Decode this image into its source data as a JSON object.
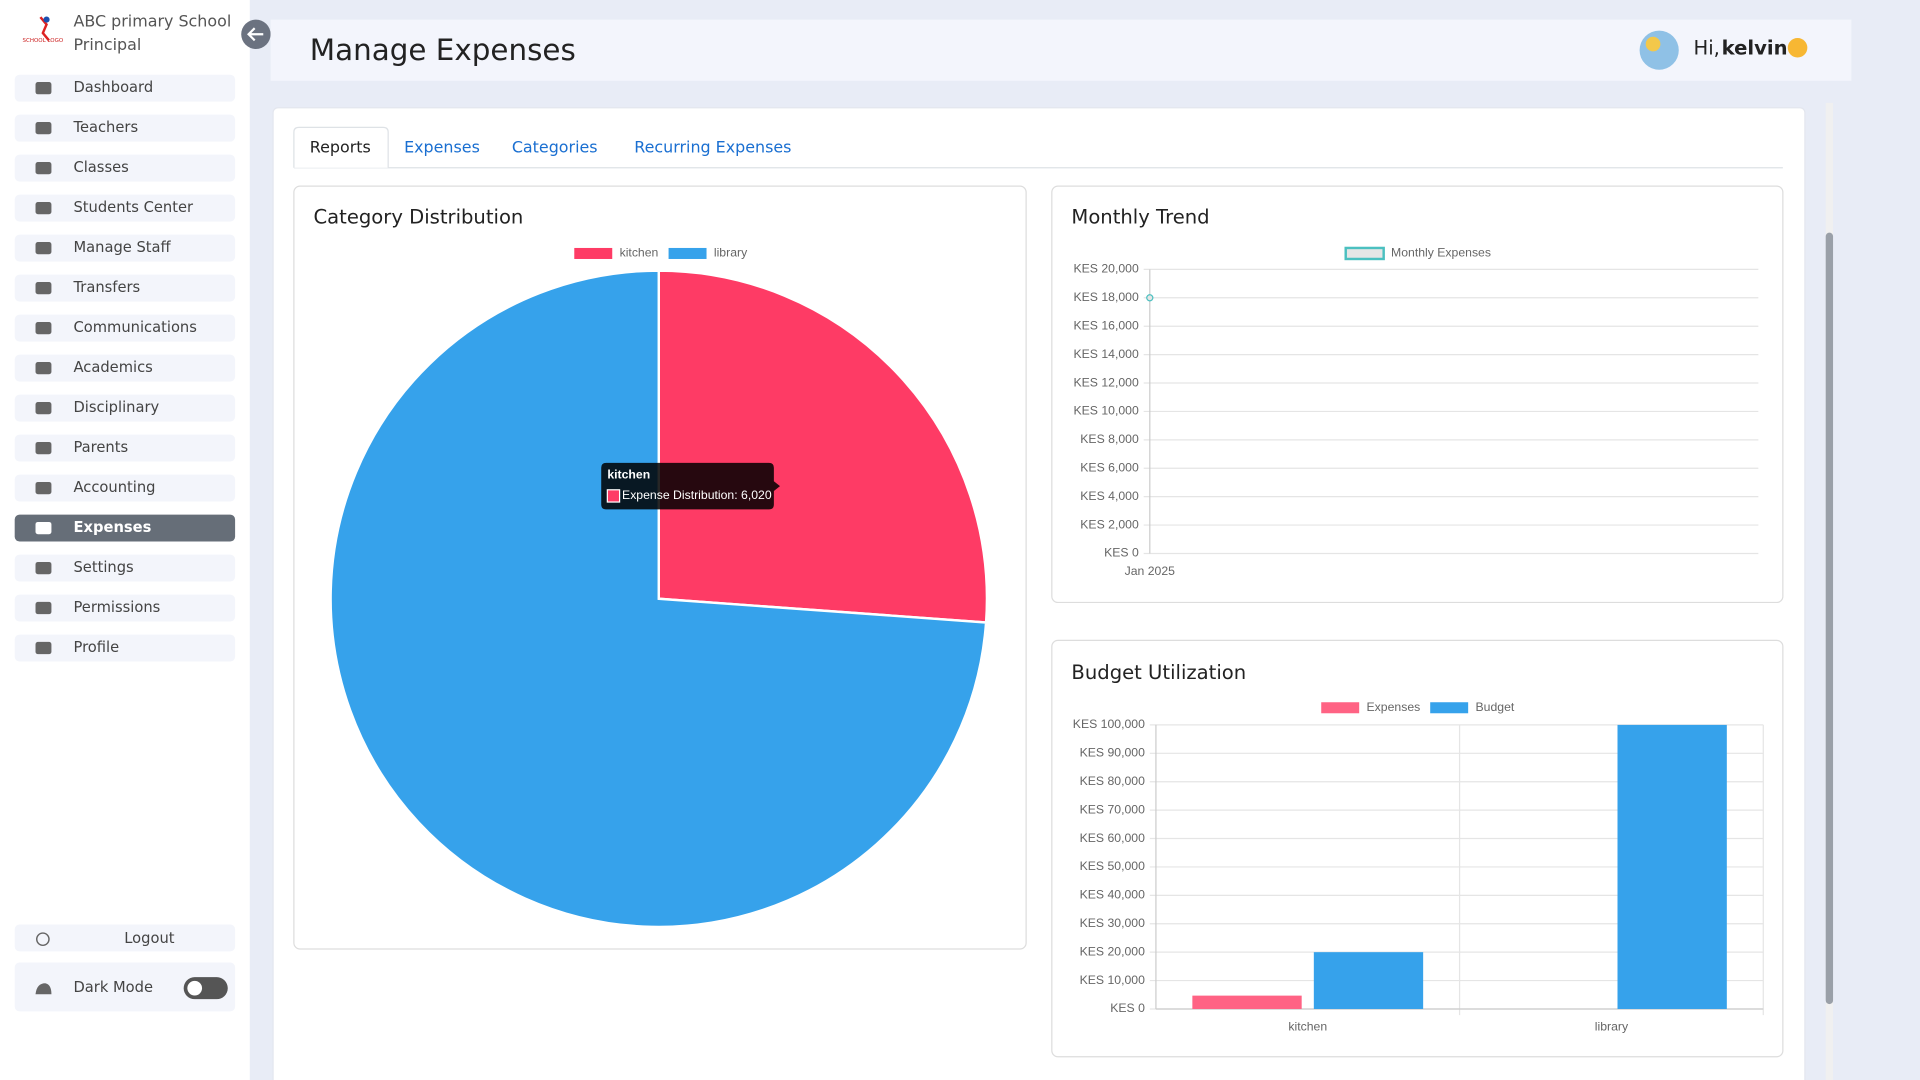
{
  "sidebar": {
    "logo_text": "SCHOOL LOGO",
    "school": "ABC primary School",
    "role": "Principal",
    "menu": [
      "Dashboard",
      "Teachers",
      "Classes",
      "Students Center",
      "Manage Staff",
      "Transfers",
      "Communications",
      "Academics",
      "Disciplinary",
      "Parents",
      "Accounting",
      "Expenses",
      "Settings",
      "Permissions",
      "Profile"
    ],
    "active_index": 11,
    "logout": "Logout",
    "dark_mode": "Dark Mode"
  },
  "header": {
    "title": "Manage Expenses",
    "greeting": "Hi,",
    "user": "kelvin"
  },
  "tabs": [
    "Reports",
    "Expenses",
    "Categories",
    "Recurring Expenses"
  ],
  "chart_data": [
    {
      "type": "pie",
      "title": "Category Distribution",
      "categories": [
        "kitchen",
        "library"
      ],
      "values": [
        6020,
        17000
      ],
      "colors": [
        "#fe3b65",
        "#36a2eb"
      ],
      "tooltip": {
        "title": "kitchen",
        "text": "Expense Distribution: 6,020"
      }
    },
    {
      "type": "line",
      "title": "Monthly Trend",
      "categories": [
        "Jan 2025"
      ],
      "series": [
        {
          "name": "Monthly Expenses",
          "color": "#4bc0c0",
          "values": [
            18000
          ]
        }
      ],
      "ylim": [
        0,
        20000
      ],
      "yticks": [
        {
          "value": 0,
          "label": "KES 0"
        },
        {
          "value": 2000,
          "label": "KES 2,000"
        },
        {
          "value": 4000,
          "label": "KES 4,000"
        },
        {
          "value": 6000,
          "label": "KES 6,000"
        },
        {
          "value": 8000,
          "label": "KES 8,000"
        },
        {
          "value": 10000,
          "label": "KES 10,000"
        },
        {
          "value": 12000,
          "label": "KES 12,000"
        },
        {
          "value": 14000,
          "label": "KES 14,000"
        },
        {
          "value": 16000,
          "label": "KES 16,000"
        },
        {
          "value": 18000,
          "label": "KES 18,000"
        },
        {
          "value": 20000,
          "label": "KES 20,000"
        }
      ],
      "grid": true
    },
    {
      "type": "bar",
      "title": "Budget Utilization",
      "categories": [
        "kitchen",
        "library"
      ],
      "series": [
        {
          "name": "Expenses",
          "color": "#ff6384",
          "values": [
            4700,
            0
          ]
        },
        {
          "name": "Budget",
          "color": "#36a2eb",
          "values": [
            20000,
            100000
          ]
        }
      ],
      "ylim": [
        0,
        100000
      ],
      "yticks": [
        {
          "value": 0,
          "label": "KES 0"
        },
        {
          "value": 10000,
          "label": "KES 10,000"
        },
        {
          "value": 20000,
          "label": "KES 20,000"
        },
        {
          "value": 30000,
          "label": "KES 30,000"
        },
        {
          "value": 40000,
          "label": "KES 40,000"
        },
        {
          "value": 50000,
          "label": "KES 50,000"
        },
        {
          "value": 60000,
          "label": "KES 60,000"
        },
        {
          "value": 70000,
          "label": "KES 70,000"
        },
        {
          "value": 80000,
          "label": "KES 80,000"
        },
        {
          "value": 90000,
          "label": "KES 90,000"
        },
        {
          "value": 100000,
          "label": "KES 100,000"
        }
      ],
      "grid": true
    }
  ]
}
